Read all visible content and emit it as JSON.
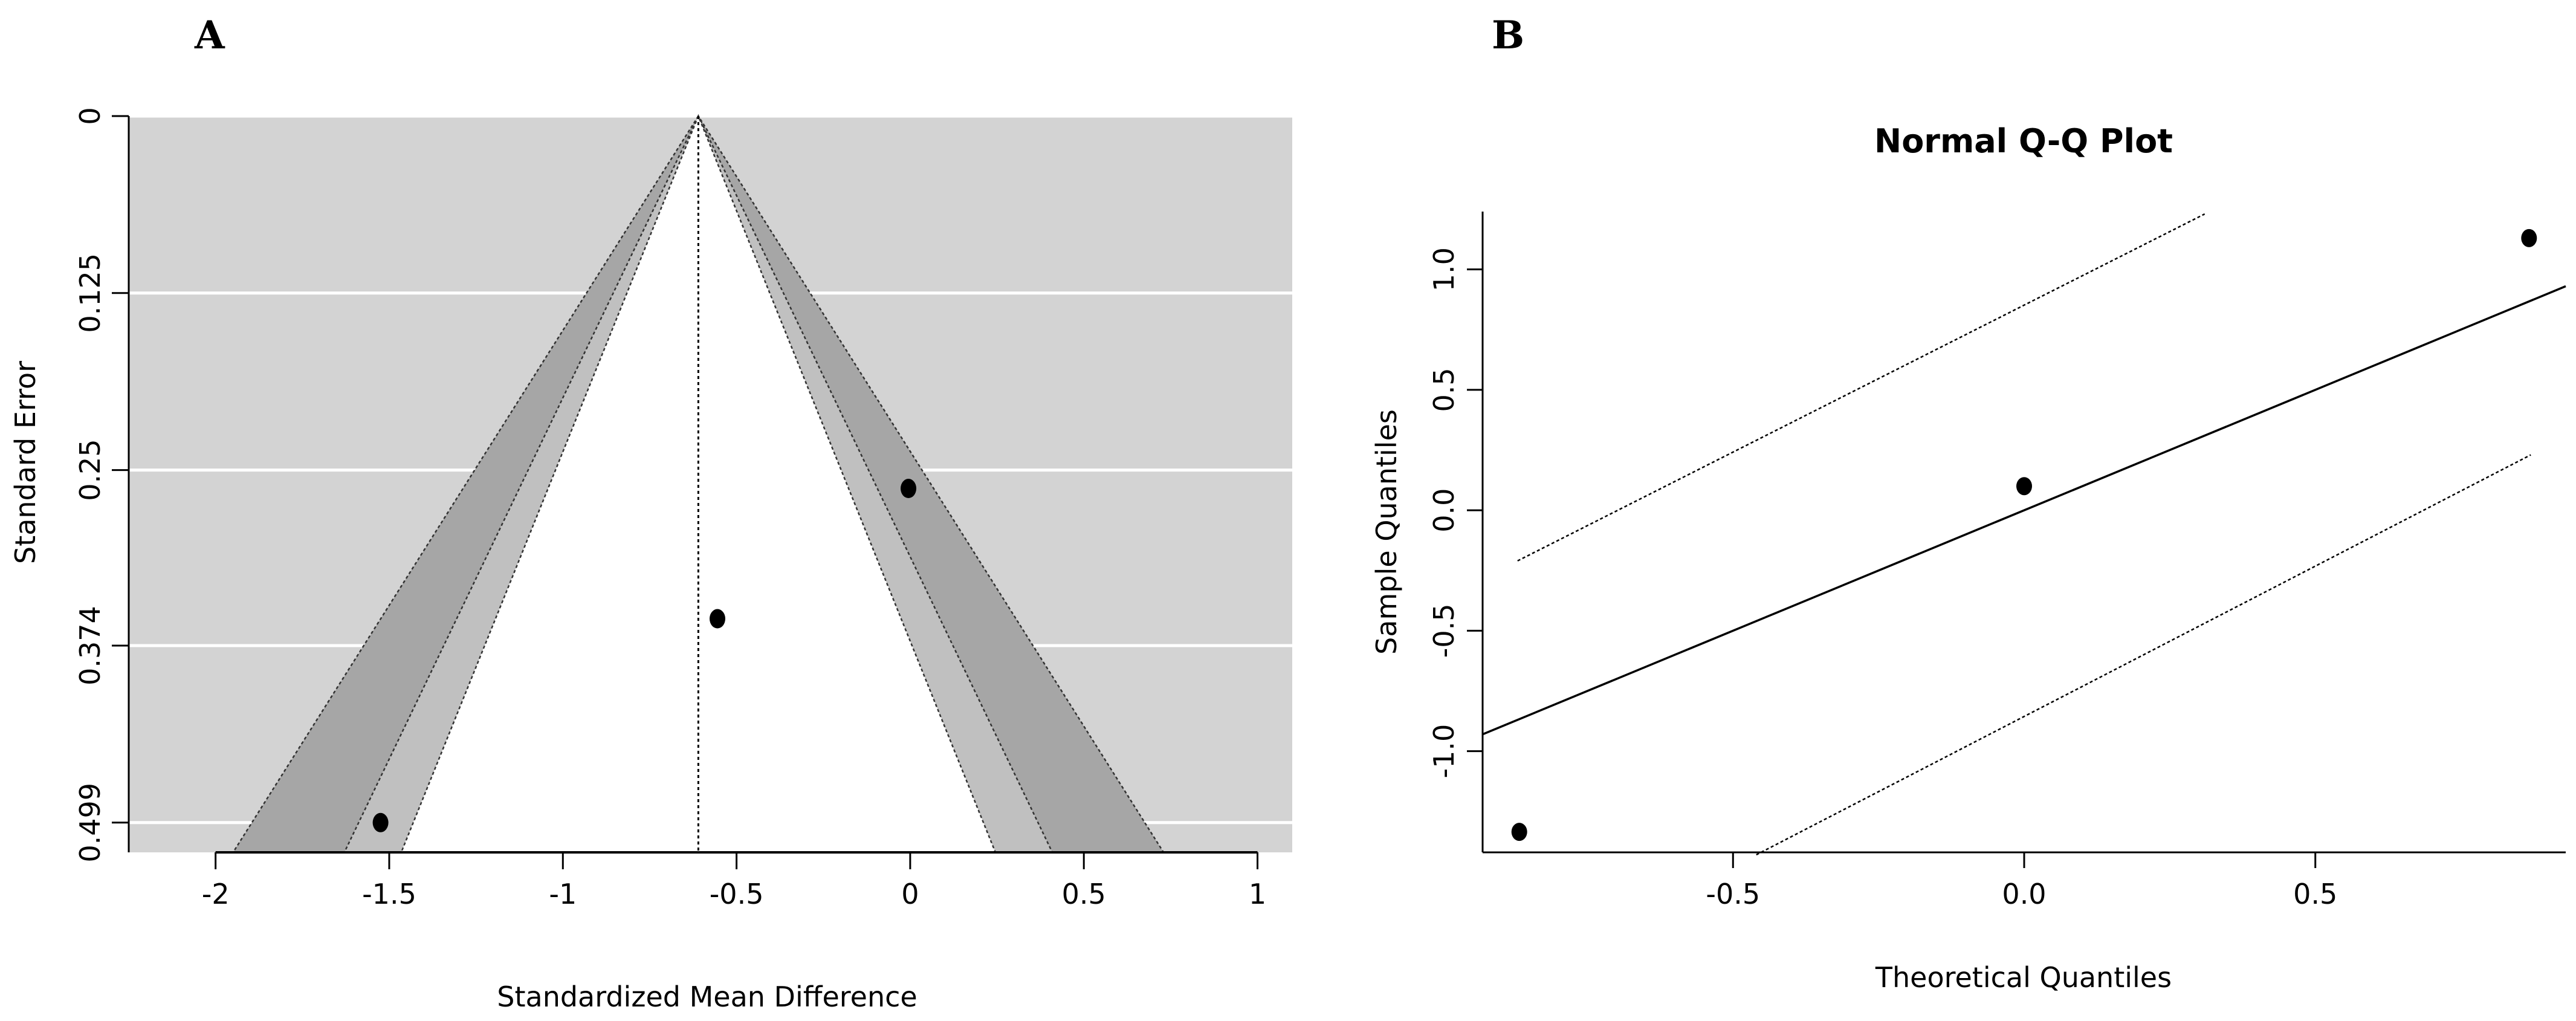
{
  "panels": {
    "a_label": "A",
    "b_label": "B"
  },
  "chart_data": [
    {
      "type": "scatter",
      "subtype": "funnel",
      "title": "",
      "xlabel": "Standardized Mean Difference",
      "ylabel": "Standard Error",
      "xlim": [
        -2.25,
        1.1
      ],
      "ylim": [
        0,
        0.52
      ],
      "y_reversed": true,
      "grid": true,
      "background": "#d3d3d3",
      "xticks": [
        -2,
        -1.5,
        -1,
        -0.5,
        0,
        0.5,
        1
      ],
      "xtick_labels": [
        "-2",
        "-1.5",
        "-1",
        "-0.5",
        "0",
        "0.5",
        "1"
      ],
      "yticks": [
        0,
        0.125,
        0.25,
        0.374,
        0.499
      ],
      "ytick_labels": [
        "0",
        "0.125",
        "0.25",
        "0.374",
        "0.499"
      ],
      "estimate": -0.61,
      "se_max": 0.52,
      "contours": [
        {
          "level": "90%",
          "z": 1.645,
          "color": "#ffffff"
        },
        {
          "level": "95%",
          "z": 1.96,
          "color": "#c0c0c0"
        },
        {
          "level": "99%",
          "z": 2.576,
          "color": "#a6a6a6"
        }
      ],
      "points": [
        {
          "x": -0.005,
          "y": 0.263
        },
        {
          "x": -0.555,
          "y": 0.355
        },
        {
          "x": -1.525,
          "y": 0.499
        }
      ]
    },
    {
      "type": "scatter",
      "subtype": "qq",
      "title": "Normal Q-Q Plot",
      "xlabel": "Theoretical Quantiles",
      "ylabel": "Sample Quantiles",
      "xlim": [
        -0.93,
        0.93
      ],
      "ylim": [
        -1.42,
        1.24
      ],
      "grid": false,
      "xticks": [
        -0.5,
        0.0,
        0.5
      ],
      "xtick_labels": [
        "-0.5",
        "0.0",
        "0.5"
      ],
      "yticks": [
        -1.0,
        -0.5,
        0.0,
        0.5,
        1.0
      ],
      "ytick_labels": [
        "-1.0",
        "-0.5",
        "0.0",
        "0.5",
        "1.0"
      ],
      "reference_line": {
        "intercept": 0.0,
        "slope": 1.0
      },
      "confidence_band_upper": [
        {
          "x": -0.87,
          "y": -0.21
        },
        {
          "x": 0.31,
          "y": 1.23
        }
      ],
      "confidence_band_lower": [
        {
          "x": -0.46,
          "y": -1.43
        },
        {
          "x": 0.87,
          "y": 0.23
        }
      ],
      "points": [
        {
          "x": -0.867,
          "y": -1.335
        },
        {
          "x": 0.0,
          "y": 0.1
        },
        {
          "x": 0.867,
          "y": 1.13
        }
      ]
    }
  ]
}
